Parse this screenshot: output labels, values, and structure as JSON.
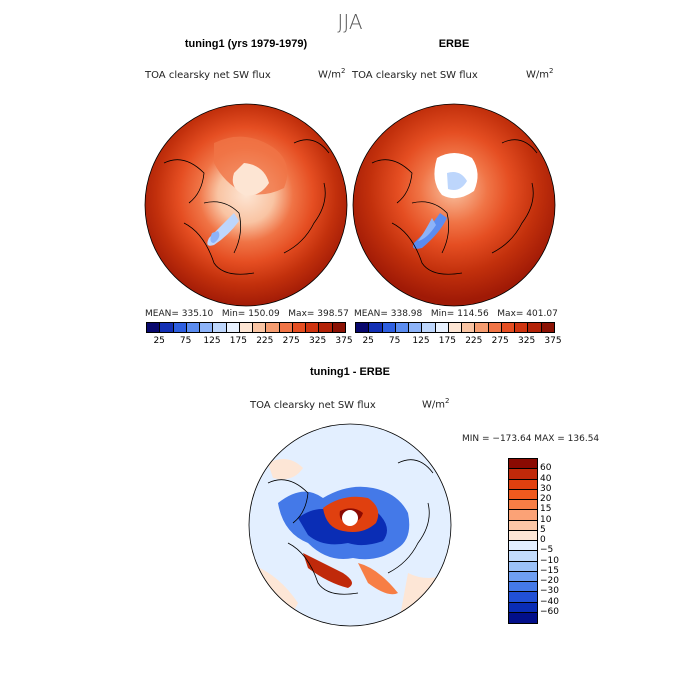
{
  "figure": {
    "suptitle": "JJA",
    "panel1_title": "tuning1 (yrs 1979-1979)",
    "panel2_title": "ERBE",
    "panel3_title": "tuning1 - ERBE",
    "variable": "TOA clearsky net SW flux",
    "units": "W/m",
    "units_exp": "2"
  },
  "chart_data": [
    {
      "type": "heatmap",
      "title": "tuning1 (yrs 1979-1979)",
      "variable": "TOA clearsky net SW flux",
      "units": "W/m2",
      "projection": "north polar stereographic",
      "stats": {
        "mean": "335.10",
        "min": "150.09",
        "max": "398.57"
      },
      "stats_text": {
        "mean": "MEAN= 335.10",
        "min": "Min= 150.09",
        "max": "Max= 398.57"
      },
      "colorbar_ticks": [
        "25",
        "75",
        "125",
        "175",
        "225",
        "275",
        "325",
        "375"
      ],
      "colorbar_colors": [
        "#08086e",
        "#1330b5",
        "#2e5fe0",
        "#5b8cf0",
        "#8db3f8",
        "#bdd6fc",
        "#e8f1fe",
        "#fde5d3",
        "#f9c4a3",
        "#f59c70",
        "#f07446",
        "#e54e22",
        "#cf3410",
        "#b32308",
        "#8b1204"
      ]
    },
    {
      "type": "heatmap",
      "title": "ERBE",
      "variable": "TOA clearsky net SW flux",
      "units": "W/m2",
      "projection": "north polar stereographic",
      "stats": {
        "mean": "338.98",
        "min": "114.56",
        "max": "401.07"
      },
      "stats_text": {
        "mean": "MEAN= 338.98",
        "min": "Min= 114.56",
        "max": "Max= 401.07"
      },
      "colorbar_ticks": [
        "25",
        "75",
        "125",
        "175",
        "225",
        "275",
        "325",
        "375"
      ],
      "colorbar_colors": [
        "#08086e",
        "#1330b5",
        "#2e5fe0",
        "#5b8cf0",
        "#8db3f8",
        "#bdd6fc",
        "#e8f1fe",
        "#fde5d3",
        "#f9c4a3",
        "#f59c70",
        "#f07446",
        "#e54e22",
        "#cf3410",
        "#b32308",
        "#8b1204"
      ]
    },
    {
      "type": "heatmap",
      "title": "tuning1 - ERBE",
      "variable": "TOA clearsky net SW flux",
      "units": "W/m2",
      "projection": "north polar stereographic",
      "stats": {
        "min": "-173.64",
        "max": "136.54"
      },
      "stats_text": "MIN = −173.64 MAX = 136.54",
      "colorbar_levels": [
        "60",
        "40",
        "30",
        "20",
        "15",
        "10",
        "5",
        "0",
        "−5",
        "−10",
        "−15",
        "−20",
        "−30",
        "−40",
        "−60"
      ],
      "colorbar_colors": [
        "#8b0a02",
        "#c0290a",
        "#e0400f",
        "#f05a1e",
        "#f77e45",
        "#fba276",
        "#fcc7a6",
        "#fde6d6",
        "#e3efff",
        "#c3dcfc",
        "#9cc2f8",
        "#6f9ff2",
        "#4479e8",
        "#2150d6",
        "#0a2db5",
        "#020f8a"
      ]
    }
  ]
}
